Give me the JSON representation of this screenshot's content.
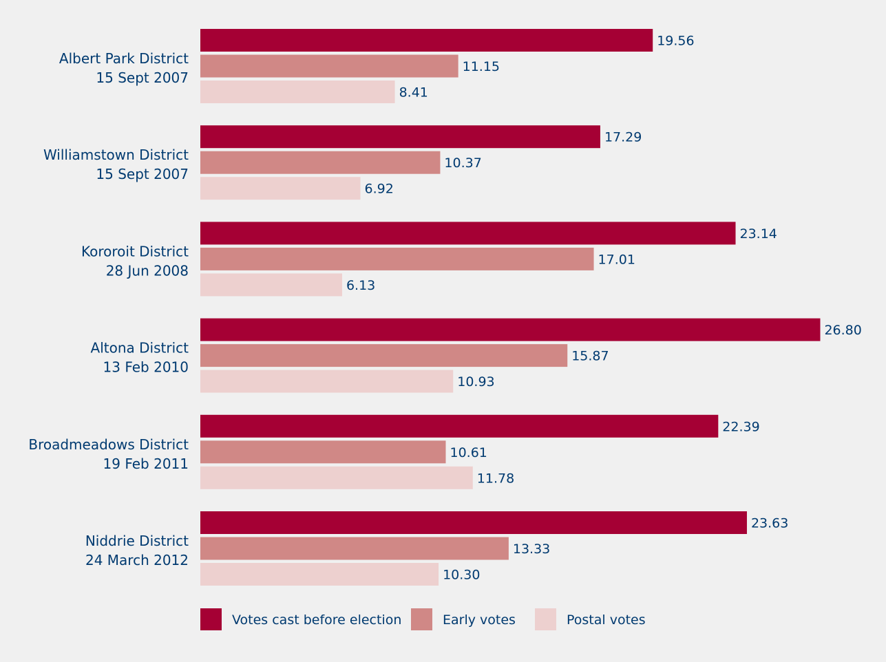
{
  "chart_data": {
    "type": "bar",
    "orientation": "horizontal",
    "categories": [
      [
        "Albert Park District",
        "15 Sept 2007"
      ],
      [
        "Williamstown District",
        "15 Sept 2007"
      ],
      [
        "Kororoit District",
        "28 Jun 2008"
      ],
      [
        "Altona District",
        "13 Feb 2010"
      ],
      [
        "Broadmeadows District",
        "19 Feb 2011"
      ],
      [
        "Niddrie District",
        "24 March 2012"
      ]
    ],
    "series": [
      {
        "name": "Votes cast before election",
        "color": "#a50034",
        "values": [
          19.56,
          17.29,
          23.14,
          26.8,
          22.39,
          23.63
        ],
        "labels": [
          "19.56",
          "17.29",
          "23.14",
          "26.80",
          "22.39",
          "23.63"
        ]
      },
      {
        "name": "Early votes",
        "color": "#d08886",
        "values": [
          11.15,
          10.37,
          17.01,
          15.87,
          10.61,
          13.33
        ],
        "labels": [
          "11.15",
          "10.37",
          "17.01",
          "15.87",
          "10.61",
          "13.33"
        ]
      },
      {
        "name": "Postal votes",
        "color": "#edd0cf",
        "values": [
          8.41,
          6.92,
          6.13,
          10.93,
          11.78,
          10.3
        ],
        "labels": [
          "8.41",
          "6.92",
          "6.13",
          "10.93",
          "11.78",
          "10.30"
        ]
      }
    ],
    "xlim": [
      0,
      30
    ],
    "grid": false,
    "legend_position": "bottom"
  }
}
